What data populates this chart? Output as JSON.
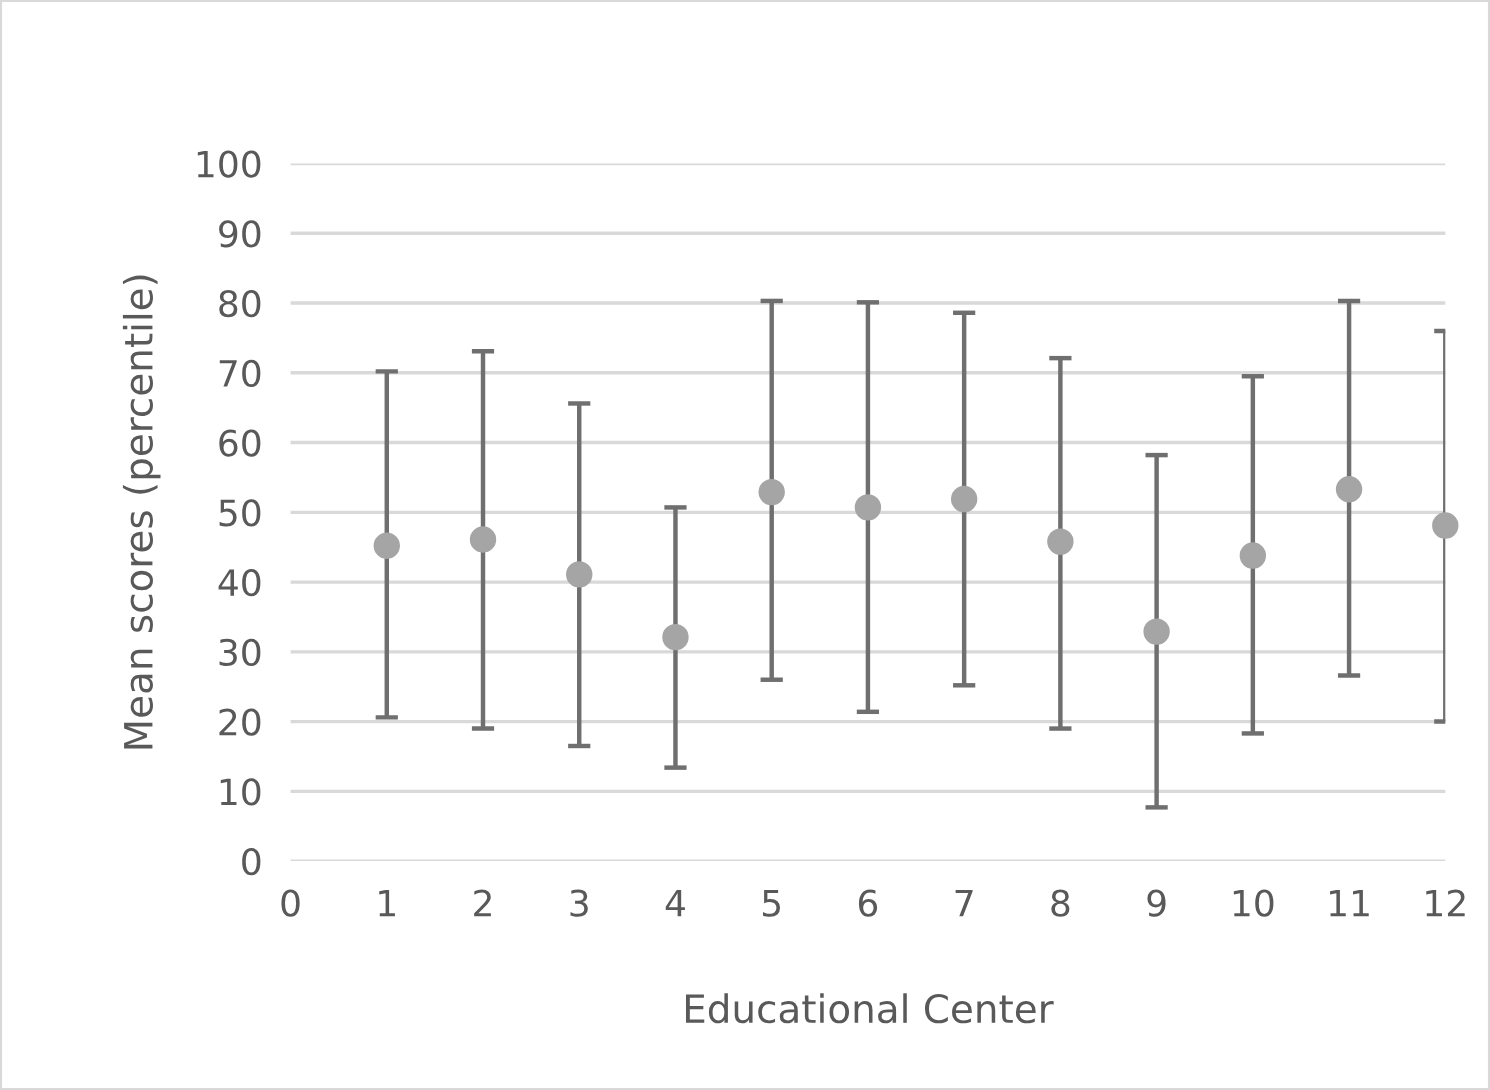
{
  "chart_data": {
    "type": "scatter",
    "xlabel": "Educational Center",
    "ylabel": "Mean scores (percentile)",
    "x": [
      1,
      2,
      3,
      4,
      5,
      6,
      7,
      8,
      9,
      10,
      11,
      12
    ],
    "series": [
      {
        "color": "#a5a5a5",
        "values": [
          45.2,
          46.1,
          41.1,
          32.1,
          52.9,
          50.7,
          51.9,
          45.8,
          32.9,
          43.8,
          53.3,
          48.1
        ],
        "errors": [
          [
            20.6,
            70.2
          ],
          [
            19.0,
            73.1
          ],
          [
            16.5,
            65.6
          ],
          [
            13.4,
            50.7
          ],
          [
            26.0,
            80.3
          ],
          [
            21.4,
            80.1
          ],
          [
            25.2,
            78.6
          ],
          [
            19.0,
            72.1
          ],
          [
            7.7,
            58.2
          ],
          [
            18.3,
            69.5
          ],
          [
            26.6,
            80.3
          ],
          [
            20.0,
            76.0
          ]
        ]
      }
    ],
    "xlim": [
      0,
      12
    ],
    "xticks": [
      0,
      1,
      2,
      3,
      4,
      5,
      6,
      7,
      8,
      9,
      10,
      11,
      12
    ],
    "ylim": [
      0,
      100
    ],
    "yticks": [
      0,
      10,
      20,
      30,
      40,
      50,
      60,
      70,
      80,
      90,
      100
    ],
    "grid": "y",
    "marker": "circle",
    "legend": false
  }
}
